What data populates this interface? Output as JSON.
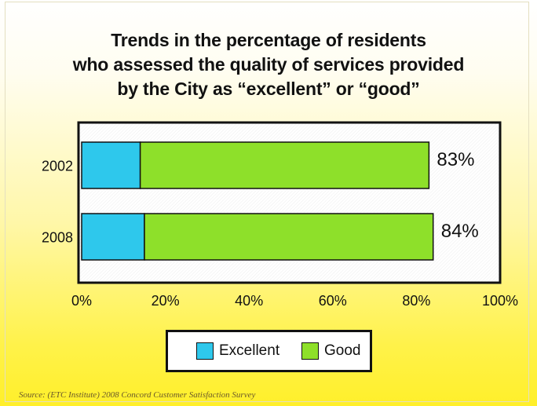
{
  "chart_data": {
    "type": "bar",
    "orientation": "horizontal",
    "stacked": true,
    "title_lines": [
      "Trends in the percentage of residents",
      "who assessed the quality of services provided",
      "by the City as “excellent” or “good”"
    ],
    "categories": [
      "2002",
      "2008"
    ],
    "series": [
      {
        "name": "Excellent",
        "values": [
          14,
          15
        ],
        "color": "#2ec8ec"
      },
      {
        "name": "Good",
        "values": [
          69,
          69
        ],
        "color": "#8ee02a"
      }
    ],
    "total_labels": [
      "83%",
      "84%"
    ],
    "xlim": [
      0,
      100
    ],
    "x_ticks": [
      0,
      20,
      40,
      60,
      80,
      100
    ],
    "x_tick_labels": [
      "0%",
      "20%",
      "40%",
      "60%",
      "80%",
      "100%"
    ],
    "grid": false,
    "legend_position": "bottom-center"
  },
  "source": "Source:  (ETC Institute) 2008 Concord Customer Satisfaction Survey"
}
